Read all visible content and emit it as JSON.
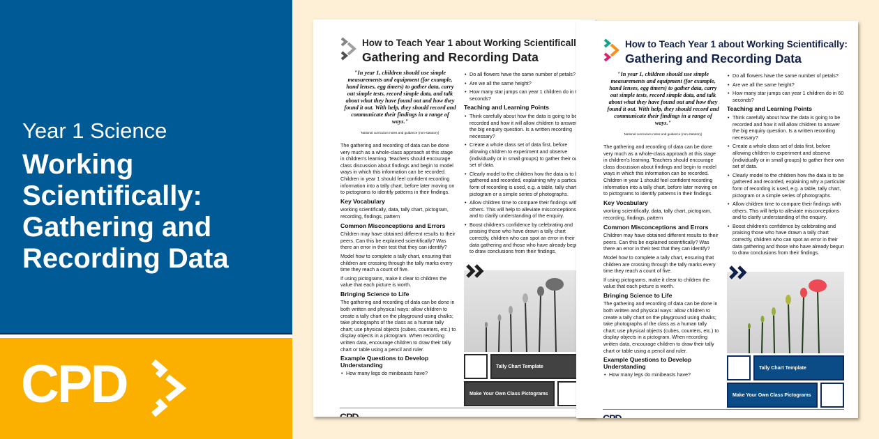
{
  "banner": {
    "subtitle": "Year 1 Science",
    "title": "Working Scientifically: Gathering and Recording Data",
    "logo_text": "CPD",
    "colors": {
      "blue": "#005a96",
      "yellow": "#fbb000",
      "background": "#fdf0d6"
    }
  },
  "doc": {
    "title_line1": "How to Teach Year 1 about Working Scientifically:",
    "title_line2": "Gathering and Recording Data",
    "quote": "\"In year 1, children should use simple measurements and equipment (for example, hand lenses, egg timers) to gather data, carry out simple tests, record simple data, and talk about what they have found out and how they found it out. With help, they should record and communicate their findings in a range of ways.\"",
    "quote_source": "National curriculum notes and guidance (non-statutory)",
    "intro": "The gathering and recording of data can be done very much as a whole-class approach at this stage in children's learning. Teachers should encourage class discussion about findings and begin to model ways in which this information can be recorded. Children in year 1 should feel confident recording information into a tally chart, before later moving on to pictograms to identify patterns in their findings.",
    "vocab_heading": "Key Vocabulary",
    "vocab": "working scientifically, data, tally chart, pictogram, recording, findings, pattern",
    "misc_heading": "Common Misconceptions and Errors",
    "misc": [
      "Children may have obtained different results to their peers. Can this be explained scientifically? Was there an error in their test that they can identify?",
      "Model how to complete a tally chart, ensuring that children are crossing through the tally marks every time they reach a count of five.",
      "If using pictograms, make it clear to children the value that each picture is worth."
    ],
    "life_heading": "Bringing Science to Life",
    "life": "The gathering and recording of data can be done in both written and physical ways: allow children to create a tally chart on the playground using chalks; take photographs of the class as a human tally chart; use physical objects (cubes, counters, etc.) to display objects in a pictogram. When recording written data, encourage children to draw their tally chart or table using a pencil and ruler.",
    "questions_heading": "Example Questions to Develop Understanding",
    "questions": [
      "How many legs do minibeasts have?",
      "Do all flowers have the same number of petals?",
      "Are we all the same height?",
      "How many star jumps can year 1 children do in 60 seconds?"
    ],
    "points_heading": "Teaching and Learning Points",
    "points": [
      "Think carefully about how the data is going to be recorded and how it will allow children to answer the big enquiry question. Is a written recording necessary?",
      "Create a whole class set of data first, before allowing children to experiment and observe (individually or in small groups) to gather their own set of data.",
      "Clearly model to the children how the data is to be gathered and recorded, explaining why a particular form of recording is used, e.g. a table, tally chart, pictogram or a simple series of photographs.",
      "Allow children time to compare their findings with others. This will help to alleviate misconceptions and to clarify understanding of the enquiry.",
      "Boost children's confidence by celebrating and praising those who have drawn a tally chart correctly, children who can spot an error in their data gathering and those who have already begun to draw conclusions from their findings."
    ],
    "link1": "Tally Chart Template",
    "link2": "Make Your Own Class Pictograms",
    "footer_logo": "CPD"
  }
}
